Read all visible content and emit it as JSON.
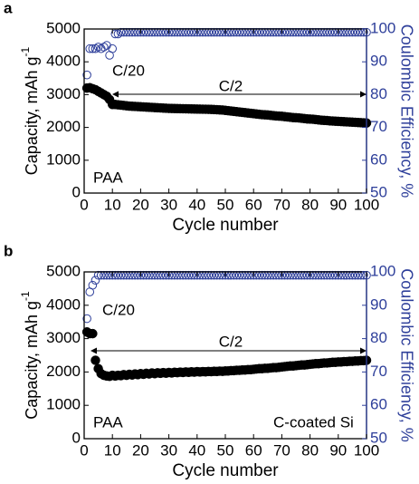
{
  "chart_data": [
    {
      "type": "scatter",
      "panel_label": "a",
      "xlabel": "Cycle number",
      "ylabel": "Capacity, mAh g",
      "ylabel_sup": "-1",
      "y2label": "Coulombic Efficiency, %",
      "annotations": [
        "C/20",
        "C/2",
        "PAA"
      ],
      "xlim": [
        0,
        100
      ],
      "xticks": [
        0,
        10,
        20,
        30,
        40,
        50,
        60,
        70,
        80,
        90,
        100
      ],
      "ylim": [
        0,
        5000
      ],
      "yticks": [
        0,
        1000,
        2000,
        3000,
        4000,
        5000
      ],
      "y2lim": [
        50,
        100
      ],
      "y2ticks": [
        50,
        60,
        70,
        80,
        90,
        100
      ],
      "x": [
        1,
        2,
        3,
        4,
        5,
        6,
        7,
        8,
        9,
        10,
        11,
        12,
        13,
        14,
        15,
        16,
        17,
        18,
        19,
        20,
        21,
        22,
        23,
        24,
        25,
        26,
        27,
        28,
        29,
        30,
        31,
        32,
        33,
        34,
        35,
        36,
        37,
        38,
        39,
        40,
        41,
        42,
        43,
        44,
        45,
        46,
        47,
        48,
        49,
        50,
        51,
        52,
        53,
        54,
        55,
        56,
        57,
        58,
        59,
        60,
        61,
        62,
        63,
        64,
        65,
        66,
        67,
        68,
        69,
        70,
        71,
        72,
        73,
        74,
        75,
        76,
        77,
        78,
        79,
        80,
        81,
        82,
        83,
        84,
        85,
        86,
        87,
        88,
        89,
        90,
        91,
        92,
        93,
        94,
        95,
        96,
        97,
        98,
        99,
        100
      ],
      "series": [
        {
          "color": "#000000",
          "values": [
            3200,
            3210,
            3180,
            3150,
            3100,
            3050,
            3000,
            2950,
            2850,
            2700,
            2700,
            2690,
            2680,
            2670,
            2660,
            2650,
            2645,
            2640,
            2635,
            2630,
            2625,
            2620,
            2615,
            2610,
            2605,
            2600,
            2595,
            2590,
            2585,
            2580,
            2578,
            2576,
            2574,
            2572,
            2570,
            2568,
            2566,
            2564,
            2562,
            2560,
            2558,
            2556,
            2554,
            2552,
            2550,
            2545,
            2540,
            2535,
            2530,
            2520,
            2510,
            2500,
            2490,
            2480,
            2470,
            2460,
            2450,
            2440,
            2430,
            2420,
            2410,
            2400,
            2390,
            2385,
            2380,
            2370,
            2360,
            2350,
            2345,
            2340,
            2330,
            2320,
            2310,
            2300,
            2295,
            2290,
            2280,
            2270,
            2260,
            2255,
            2250,
            2240,
            2230,
            2220,
            2215,
            2210,
            2200,
            2195,
            2190,
            2185,
            2180,
            2175,
            2170,
            2165,
            2160,
            2155,
            2150,
            2145,
            2140,
            2135
          ]
        },
        {
          "color": "#2e3f9a",
          "axis": "y2",
          "values": [
            86,
            94,
            94,
            94,
            94.5,
            94,
            94.5,
            95,
            92,
            94,
            98.5,
            98.5,
            99,
            99,
            99,
            99,
            99,
            99,
            99,
            99,
            99,
            99,
            99,
            99,
            99,
            99,
            99,
            99,
            99,
            99,
            99,
            99,
            99,
            99,
            99,
            99,
            99,
            99,
            99,
            99,
            99,
            99,
            99,
            99,
            99,
            99,
            99,
            99,
            99,
            99,
            99,
            99,
            99,
            99,
            99,
            99,
            99,
            99,
            99,
            99,
            99,
            99,
            99,
            99,
            99,
            99,
            99,
            99,
            99,
            99,
            99,
            99,
            99,
            99,
            99,
            99,
            99,
            99,
            99,
            99,
            99,
            99,
            99,
            99,
            99,
            99,
            99,
            99,
            99,
            99,
            99,
            99,
            99,
            99,
            99,
            99,
            99,
            99,
            99,
            99
          ]
        }
      ]
    },
    {
      "type": "scatter",
      "panel_label": "b",
      "xlabel": "Cycle number",
      "ylabel": "Capacity, mAh g",
      "ylabel_sup": "-1",
      "y2label": "Coulombic Efficiency, %",
      "annotations": [
        "C/20",
        "C/2",
        "PAA",
        "C-coated Si"
      ],
      "xlim": [
        0,
        100
      ],
      "xticks": [
        0,
        10,
        20,
        30,
        40,
        50,
        60,
        70,
        80,
        90,
        100
      ],
      "ylim": [
        0,
        5000
      ],
      "yticks": [
        0,
        1000,
        2000,
        3000,
        4000,
        5000
      ],
      "y2lim": [
        50,
        100
      ],
      "y2ticks": [
        50,
        60,
        70,
        80,
        90,
        100
      ],
      "x": [
        1,
        2,
        3,
        4,
        5,
        6,
        7,
        8,
        9,
        10,
        11,
        12,
        13,
        14,
        15,
        16,
        17,
        18,
        19,
        20,
        21,
        22,
        23,
        24,
        25,
        26,
        27,
        28,
        29,
        30,
        31,
        32,
        33,
        34,
        35,
        36,
        37,
        38,
        39,
        40,
        41,
        42,
        43,
        44,
        45,
        46,
        47,
        48,
        49,
        50,
        51,
        52,
        53,
        54,
        55,
        56,
        57,
        58,
        59,
        60,
        61,
        62,
        63,
        64,
        65,
        66,
        67,
        68,
        69,
        70,
        71,
        72,
        73,
        74,
        75,
        76,
        77,
        78,
        79,
        80,
        81,
        82,
        83,
        84,
        85,
        86,
        87,
        88,
        89,
        90,
        91,
        92,
        93,
        94,
        95,
        96,
        97,
        98,
        99,
        100
      ],
      "series": [
        {
          "color": "#000000",
          "values": [
            3200,
            3150,
            3150,
            2350,
            2100,
            1950,
            1900,
            1880,
            1870,
            1900,
            1880,
            1900,
            1890,
            1920,
            1900,
            1930,
            1910,
            1940,
            1920,
            1950,
            1930,
            1960,
            1940,
            1970,
            1950,
            1975,
            1960,
            1980,
            1965,
            1985,
            1970,
            1990,
            1980,
            1995,
            1985,
            2000,
            1990,
            2005,
            1995,
            2010,
            2000,
            2010,
            2005,
            2015,
            2010,
            2020,
            2015,
            2025,
            2020,
            2030,
            2030,
            2040,
            2040,
            2050,
            2050,
            2060,
            2060,
            2070,
            2070,
            2080,
            2090,
            2100,
            2100,
            2110,
            2110,
            2120,
            2130,
            2130,
            2140,
            2150,
            2160,
            2170,
            2180,
            2180,
            2190,
            2200,
            2210,
            2210,
            2220,
            2230,
            2240,
            2250,
            2250,
            2260,
            2270,
            2270,
            2280,
            2290,
            2290,
            2300,
            2300,
            2310,
            2310,
            2320,
            2320,
            2330,
            2330,
            2340,
            2340,
            2350
          ]
        },
        {
          "color": "#2e3f9a",
          "axis": "y2",
          "values": [
            86,
            94,
            96,
            97.5,
            99,
            99,
            99,
            99,
            99,
            99,
            99,
            99,
            99,
            99,
            99,
            99,
            99,
            99,
            99,
            99,
            99,
            99,
            99,
            99,
            99,
            99,
            99,
            99,
            99,
            99,
            99,
            99,
            99,
            99,
            99,
            99,
            99,
            99,
            99,
            99,
            99,
            99,
            99,
            99,
            99,
            99,
            99,
            99,
            99,
            99,
            99,
            99,
            99,
            99,
            99,
            99,
            99,
            99,
            99,
            99,
            99,
            99,
            99,
            99,
            99,
            99,
            99,
            99,
            99,
            99,
            99,
            99,
            99,
            99,
            99,
            99,
            99,
            99,
            99,
            99,
            99,
            99,
            99,
            99,
            99,
            99,
            99,
            99,
            99,
            99,
            99,
            99,
            99,
            99,
            99,
            99,
            99,
            99,
            99,
            99
          ]
        }
      ]
    }
  ]
}
